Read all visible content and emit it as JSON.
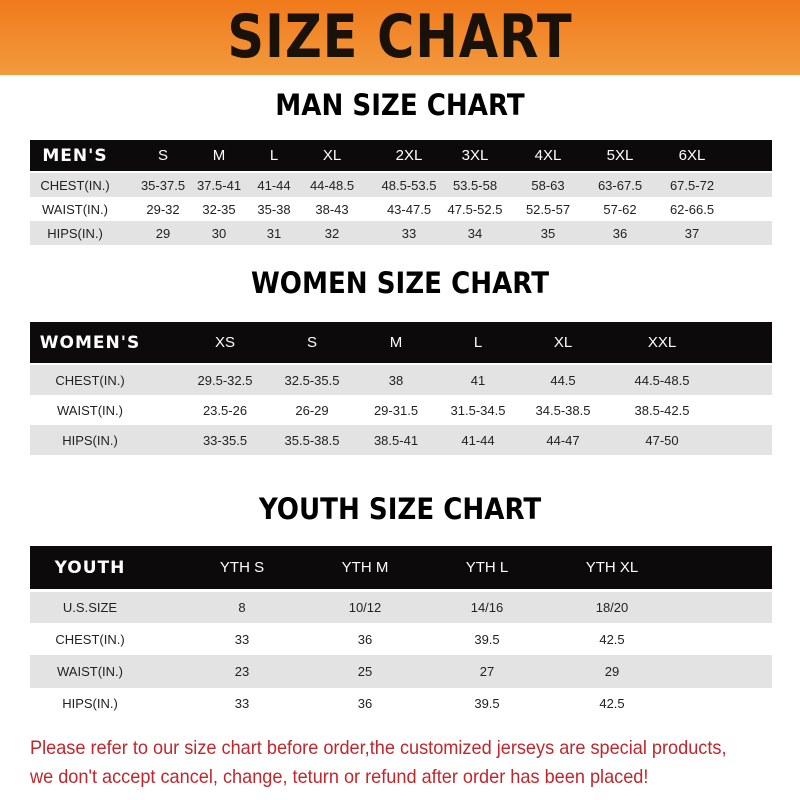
{
  "banner_title": "SIZE CHART",
  "men": {
    "title": "MAN SIZE CHART",
    "header": [
      "MEN'S",
      "S",
      "M",
      "L",
      "XL",
      "2XL",
      "3XL",
      "4XL",
      "5XL",
      "6XL"
    ],
    "rows": [
      [
        "CHEST(IN.)",
        "35-37.5",
        "37.5-41",
        "41-44",
        "44-48.5",
        "48.5-53.5",
        "53.5-58",
        "58-63",
        "63-67.5",
        "67.5-72"
      ],
      [
        "WAIST(IN.)",
        "29-32",
        "32-35",
        "35-38",
        "38-43",
        "43-47.5",
        "47.5-52.5",
        "52.5-57",
        "57-62",
        "62-66.5"
      ],
      [
        "HIPS(IN.)",
        "29",
        "30",
        "31",
        "32",
        "33",
        "34",
        "35",
        "36",
        "37"
      ]
    ]
  },
  "women": {
    "title": "WOMEN SIZE CHART",
    "header": [
      "WOMEN'S",
      "XS",
      "S",
      "M",
      "L",
      "XL",
      "XXL"
    ],
    "rows": [
      [
        "CHEST(IN.)",
        "29.5-32.5",
        "32.5-35.5",
        "38",
        "41",
        "44.5",
        "44.5-48.5"
      ],
      [
        "WAIST(IN.)",
        "23.5-26",
        "26-29",
        "29-31.5",
        "31.5-34.5",
        "34.5-38.5",
        "38.5-42.5"
      ],
      [
        "HIPS(IN.)",
        "33-35.5",
        "35.5-38.5",
        "38.5-41",
        "41-44",
        "44-47",
        "47-50"
      ]
    ]
  },
  "youth": {
    "title": "YOUTH SIZE CHART",
    "header": [
      "YOUTH",
      "YTH S",
      "YTH M",
      "YTH L",
      "YTH XL"
    ],
    "rows": [
      [
        "U.S.SIZE",
        "8",
        "10/12",
        "14/16",
        "18/20"
      ],
      [
        "CHEST(IN.)",
        "33",
        "36",
        "39.5",
        "42.5"
      ],
      [
        "WAIST(IN.)",
        "23",
        "25",
        "27",
        "29"
      ],
      [
        "HIPS(IN.)",
        "33",
        "36",
        "39.5",
        "42.5"
      ]
    ]
  },
  "note": "Please refer to our size chart before order,the customized jerseys are special products, we don't accept cancel, change, teturn or refund after order has been placed!",
  "colors": {
    "banner": "#f07a1c",
    "header_row": "#0c0a0a",
    "stripe": "#e3e3e3",
    "note": "#c0272d"
  }
}
